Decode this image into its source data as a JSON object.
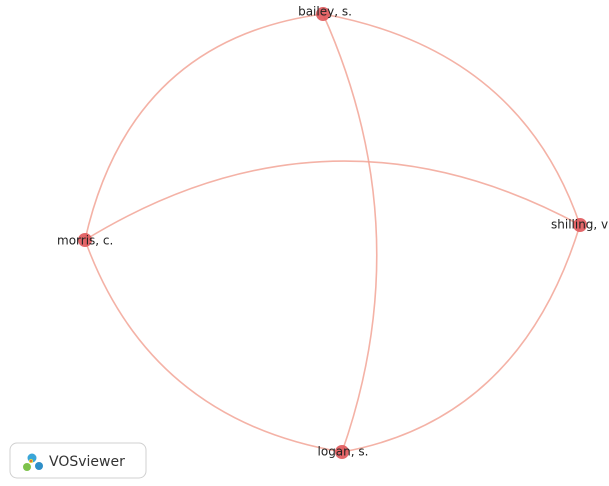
{
  "nodes": [
    {
      "label": "bailey, s."
    },
    {
      "label": "morris, c."
    },
    {
      "label": "shilling, v"
    },
    {
      "label": "logan, s."
    }
  ],
  "logo": {
    "text": "VOSviewer"
  }
}
